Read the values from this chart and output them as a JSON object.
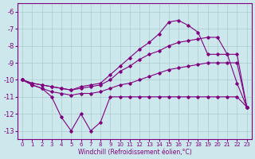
{
  "xlabel": "Windchill (Refroidissement éolien,°C)",
  "x": [
    0,
    1,
    2,
    3,
    4,
    5,
    6,
    7,
    8,
    9,
    10,
    11,
    12,
    13,
    14,
    15,
    16,
    17,
    18,
    19,
    20,
    21,
    22,
    23
  ],
  "line1": [
    -10.0,
    -10.3,
    -10.5,
    -11.0,
    -12.2,
    -13.0,
    -12.0,
    -13.0,
    -12.5,
    -11.0,
    -11.0,
    -11.0,
    -11.0,
    -11.0,
    -11.0,
    -11.0,
    -11.0,
    -11.0,
    -11.0,
    -11.0,
    -11.0,
    -11.0,
    -11.0,
    -11.6
  ],
  "line2": [
    -10.0,
    -10.3,
    -10.5,
    -10.7,
    -10.8,
    -10.9,
    -10.8,
    -10.8,
    -10.7,
    -10.5,
    -10.3,
    -10.2,
    -10.0,
    -9.8,
    -9.6,
    -9.4,
    -9.3,
    -9.2,
    -9.1,
    -9.0,
    -9.0,
    -9.0,
    -9.0,
    -11.6
  ],
  "line3": [
    -10.0,
    -10.2,
    -10.3,
    -10.4,
    -10.5,
    -10.6,
    -10.5,
    -10.4,
    -10.3,
    -10.0,
    -9.5,
    -9.2,
    -8.8,
    -8.5,
    -8.3,
    -8.0,
    -7.8,
    -7.7,
    -7.6,
    -7.5,
    -7.5,
    -8.5,
    -8.5,
    -11.6
  ],
  "line4": [
    -10.0,
    -10.2,
    -10.3,
    -10.4,
    -10.5,
    -10.6,
    -10.4,
    -10.3,
    -10.2,
    -9.7,
    -9.2,
    -8.7,
    -8.2,
    -7.8,
    -7.3,
    -6.6,
    -6.5,
    -6.8,
    -7.2,
    -8.5,
    -8.5,
    -8.5,
    -10.2,
    -11.6
  ],
  "line_color": "#800080",
  "bg_color": "#cce8ec",
  "grid_color": "#aacccc",
  "ylim": [
    -13.5,
    -5.5
  ],
  "yticks": [
    -13,
    -12,
    -11,
    -10,
    -9,
    -8,
    -7,
    -6
  ],
  "xticks": [
    0,
    1,
    2,
    3,
    4,
    5,
    6,
    7,
    8,
    9,
    10,
    11,
    12,
    13,
    14,
    15,
    16,
    17,
    18,
    19,
    20,
    21,
    22,
    23
  ]
}
